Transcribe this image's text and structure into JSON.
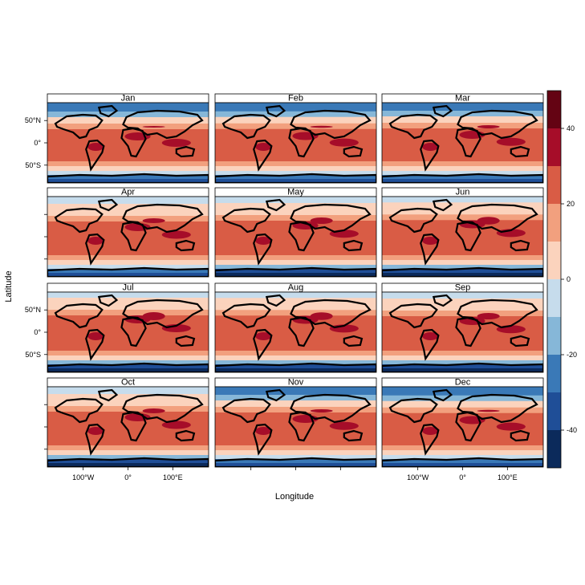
{
  "chart_data": {
    "type": "heatmap",
    "description_source": "monthly global maps, filled contour levels",
    "xlabel": "Longitude",
    "ylabel": "Latitude",
    "x_ticks": [
      "100°W",
      "0°",
      "100°E"
    ],
    "y_ticks": [
      "50°N",
      "0°",
      "50°S"
    ],
    "x_tick_values": [
      -100,
      0,
      100
    ],
    "y_tick_values": [
      50,
      0,
      -50
    ],
    "xlim": [
      -180,
      180
    ],
    "ylim": [
      -90,
      90
    ],
    "panels": [
      "Jan",
      "Feb",
      "Mar",
      "Apr",
      "May",
      "Jun",
      "Jul",
      "Aug",
      "Sep",
      "Oct",
      "Nov",
      "Dec"
    ],
    "layout": {
      "rows": 4,
      "cols": 3
    },
    "colorbar": {
      "levels": [
        -50,
        -40,
        -30,
        -20,
        -10,
        0,
        10,
        20,
        30,
        40,
        50
      ],
      "tick_labels": [
        "-40",
        "-20",
        "0",
        "20",
        "40"
      ],
      "tick_values": [
        -40,
        -20,
        0,
        20,
        40
      ],
      "colors": [
        "#0b2a5b",
        "#1f4e97",
        "#3a79b7",
        "#86b7d8",
        "#c6dcec",
        "#fbd3bd",
        "#f2a07e",
        "#d95c45",
        "#a60d29",
        "#640313"
      ],
      "placement": "right"
    },
    "grid": false
  }
}
